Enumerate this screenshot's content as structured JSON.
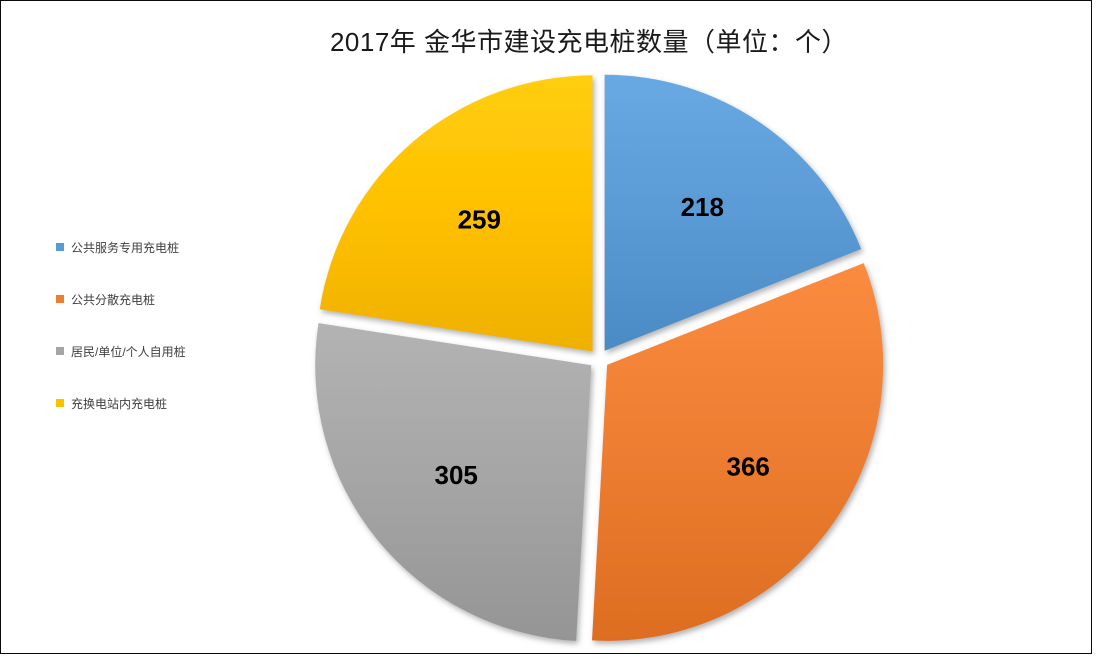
{
  "title": "2017年 金华市建设充电桩数量（单位：个）",
  "chart_data": {
    "type": "pie",
    "title": "2017年 金华市建设充电桩数量（单位：个）",
    "categories": [
      "公共服务专用充电桩",
      "公共分散充电桩",
      "居民/单位/个人自用桩",
      "充换电站内充电桩"
    ],
    "values": [
      218,
      366,
      305,
      259
    ],
    "colors": [
      "#5b9bd5",
      "#ed7d31",
      "#a5a5a5",
      "#ffc000"
    ],
    "data_labels": [
      "218",
      "366",
      "305",
      "259"
    ],
    "label_color": "#000000",
    "start_angle_deg": 0,
    "direction": "clockwise",
    "exploded": true,
    "legend_position": "left",
    "background": "#ffffff"
  }
}
